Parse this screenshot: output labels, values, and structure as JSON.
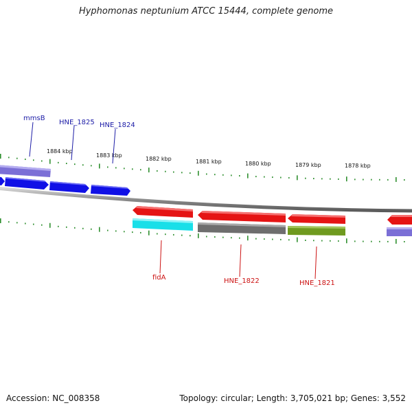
{
  "title": "Hyphomonas neptunium ATCC 15444, complete genome",
  "footer": {
    "accession": "Accession: NC_008358",
    "summary": "Topology: circular; Length: 3,705,021 bp; Genes: 3,552"
  },
  "colors": {
    "background": "#ffffff",
    "backbone": "#8c8c8c",
    "tick": "#2f8f2f",
    "forward_label": "#1a1aa6",
    "reverse_label": "#cc1111",
    "gene_blue": "#1010e6",
    "gene_purple": "#7b6fd6",
    "gene_red": "#e51414",
    "gene_cyan": "#19dfe8",
    "gene_gray": "#6e6e6e",
    "gene_olive": "#6f9a1f"
  },
  "scale_labels": [
    "1884 kbp",
    "1883 kbp",
    "1882 kbp",
    "1881 kbp",
    "1880 kbp",
    "1879 kbp",
    "1878 kbp"
  ],
  "gene_labels": {
    "forward": [
      "mmsB",
      "HNE_1825",
      "HNE_1824"
    ],
    "reverse": [
      "fidA",
      "HNE_1822",
      "HNE_1821"
    ]
  }
}
